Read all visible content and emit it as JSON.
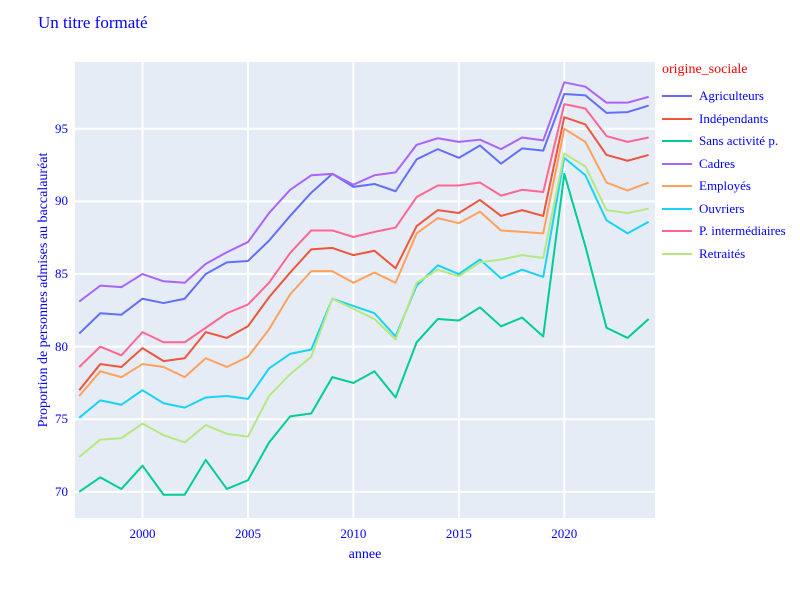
{
  "title": "Un titre formaté",
  "colors": {
    "title_text": "#0000ff",
    "tick_text": "#0000ff",
    "legend_title_text": "#ff0000",
    "legend_label_text": "#0000ff",
    "plot_background": "#e5ecf6",
    "gridline": "#ffffff"
  },
  "x_axis": {
    "label": "annee",
    "ticks": [
      2000,
      2005,
      2010,
      2015,
      2020
    ],
    "range": [
      1996.8,
      2024.3
    ]
  },
  "y_axis": {
    "label": "Proportion de personnes admises au baccalauréat",
    "ticks": [
      70,
      75,
      80,
      85,
      90,
      95
    ],
    "range": [
      68.2,
      99.6
    ]
  },
  "legend": {
    "title": "origine_sociale"
  },
  "chart_data": {
    "type": "line",
    "title": "Un titre formaté",
    "xlabel": "annee",
    "ylabel": "Proportion de personnes admises au baccalauréat",
    "legend_position": "right",
    "grid": true,
    "x": [
      1997,
      1998,
      1999,
      2000,
      2001,
      2002,
      2003,
      2004,
      2005,
      2006,
      2007,
      2008,
      2009,
      2010,
      2011,
      2012,
      2013,
      2014,
      2015,
      2016,
      2017,
      2018,
      2019,
      2020,
      2021,
      2022,
      2023,
      2024
    ],
    "series": [
      {
        "name": "Agriculteurs",
        "color": "#636efa",
        "values": [
          80.9,
          82.3,
          82.2,
          83.3,
          83.0,
          83.3,
          85.0,
          85.8,
          85.9,
          87.3,
          89.0,
          90.6,
          91.9,
          91.0,
          91.2,
          90.7,
          92.9,
          93.6,
          93.0,
          93.85,
          92.6,
          93.65,
          93.5,
          97.4,
          97.3,
          96.1,
          96.15,
          96.6
        ]
      },
      {
        "name": "Indépendants",
        "color": "#ef553b",
        "values": [
          77.0,
          78.8,
          78.6,
          79.9,
          79.0,
          79.2,
          81.0,
          80.6,
          81.4,
          83.4,
          85.1,
          86.7,
          86.8,
          86.3,
          86.6,
          85.4,
          88.3,
          89.4,
          89.2,
          90.1,
          89.0,
          89.4,
          89.0,
          95.8,
          95.3,
          93.2,
          92.8,
          93.2
        ]
      },
      {
        "name": "Sans activité p.",
        "color": "#00cc96",
        "values": [
          70.0,
          71.0,
          70.2,
          71.8,
          69.8,
          69.8,
          72.2,
          70.2,
          70.8,
          73.4,
          75.2,
          75.4,
          77.9,
          77.5,
          78.3,
          76.5,
          80.3,
          81.9,
          81.8,
          82.7,
          81.4,
          82.0,
          80.7,
          91.9,
          86.9,
          81.3,
          80.6,
          81.9
        ]
      },
      {
        "name": "Cadres",
        "color": "#ab63fa",
        "values": [
          83.1,
          84.2,
          84.1,
          85.0,
          84.5,
          84.4,
          85.7,
          86.5,
          87.2,
          89.2,
          90.8,
          91.8,
          91.9,
          91.15,
          91.8,
          92.0,
          93.9,
          94.35,
          94.1,
          94.25,
          93.6,
          94.4,
          94.2,
          98.2,
          97.9,
          96.8,
          96.8,
          97.2
        ]
      },
      {
        "name": "Employés",
        "color": "#ffa15a",
        "values": [
          76.6,
          78.3,
          77.9,
          78.8,
          78.6,
          77.9,
          79.2,
          78.6,
          79.3,
          81.2,
          83.6,
          85.2,
          85.2,
          84.4,
          85.1,
          84.4,
          87.8,
          88.85,
          88.5,
          89.3,
          88.0,
          87.9,
          87.8,
          95.0,
          94.1,
          91.3,
          90.75,
          91.3
        ]
      },
      {
        "name": "Ouvriers",
        "color": "#19d3f3",
        "values": [
          75.1,
          76.3,
          76.0,
          77.0,
          76.1,
          75.8,
          76.5,
          76.6,
          76.4,
          78.5,
          79.5,
          79.8,
          83.3,
          82.8,
          82.3,
          80.7,
          84.2,
          85.6,
          85.0,
          86.0,
          84.7,
          85.3,
          84.8,
          93.0,
          91.8,
          88.7,
          87.8,
          88.6
        ]
      },
      {
        "name": "P. intermédiaires",
        "color": "#ff6692",
        "values": [
          78.6,
          80.0,
          79.4,
          81.0,
          80.3,
          80.3,
          81.3,
          82.3,
          82.9,
          84.4,
          86.45,
          88.0,
          88.0,
          87.55,
          87.9,
          88.2,
          90.3,
          91.1,
          91.1,
          91.3,
          90.4,
          90.8,
          90.65,
          96.7,
          96.4,
          94.5,
          94.1,
          94.4
        ]
      },
      {
        "name": "Retraités",
        "color": "#b6e880",
        "values": [
          72.4,
          73.6,
          73.7,
          74.7,
          73.9,
          73.4,
          74.6,
          74.0,
          73.8,
          76.6,
          78.1,
          79.3,
          83.3,
          82.6,
          81.9,
          80.5,
          84.4,
          85.3,
          84.85,
          85.8,
          86.0,
          86.3,
          86.1,
          93.3,
          92.4,
          89.4,
          89.2,
          89.5
        ]
      }
    ]
  }
}
